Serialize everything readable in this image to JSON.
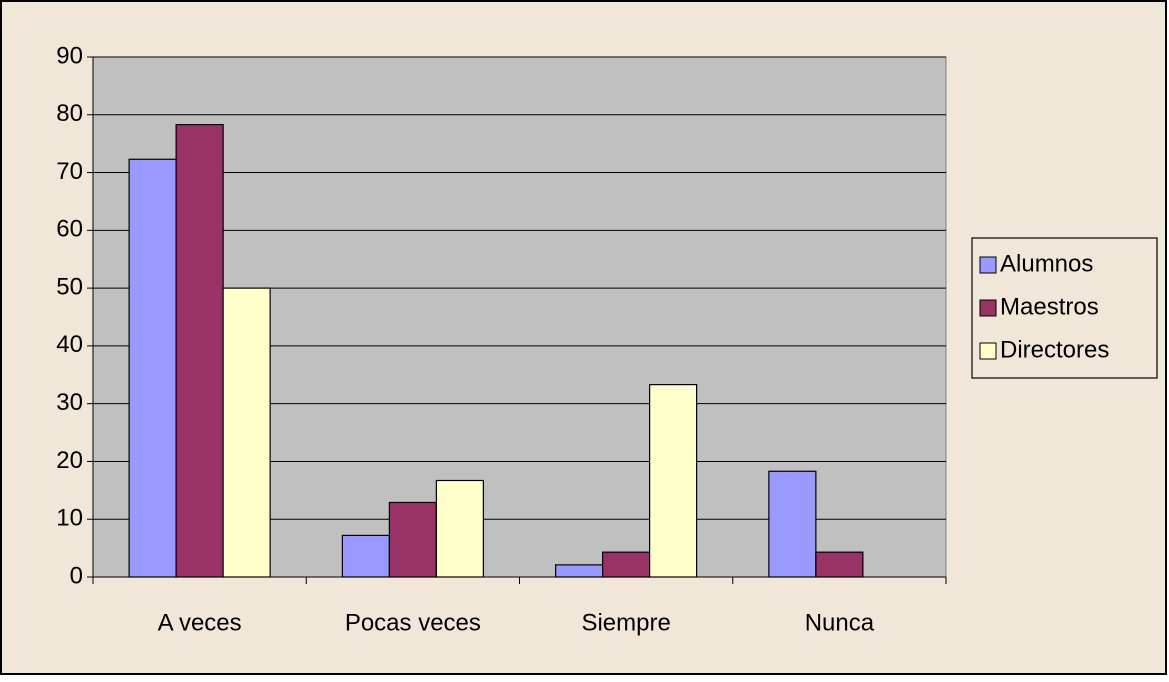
{
  "chart_data": {
    "type": "bar",
    "categories": [
      "A veces",
      "Pocas veces",
      "Siempre",
      "Nunca"
    ],
    "series": [
      {
        "name": "Alumnos",
        "color": "#9999ff",
        "values": [
          72.3,
          7.2,
          2.1,
          18.3
        ]
      },
      {
        "name": "Maestros",
        "color": "#993366",
        "values": [
          78.3,
          12.9,
          4.3,
          4.3
        ]
      },
      {
        "name": "Directores",
        "color": "#ffffcc",
        "values": [
          50,
          16.7,
          33.3,
          0
        ]
      }
    ],
    "ylim": [
      0,
      90
    ],
    "yticks": [
      0,
      10,
      20,
      30,
      40,
      50,
      60,
      70,
      80,
      90
    ],
    "grid": true,
    "legend": "right"
  }
}
